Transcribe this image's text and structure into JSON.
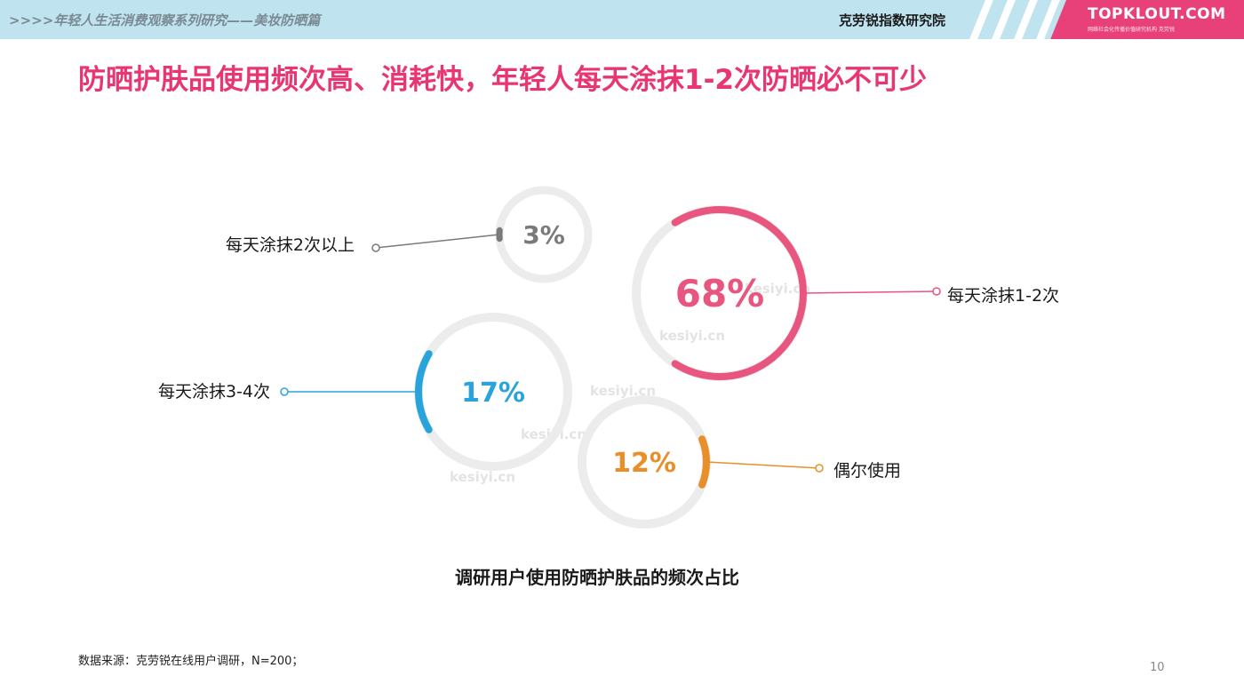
{
  "header": {
    "series_title": ">>>>年轻人生活消费观察系列研究——美妆防晒篇",
    "institute": "克劳锐指数研究院",
    "brand": "TOPKLOUT.COM",
    "brand_sub": "网络社会化传播价值研究机构 克劳锐"
  },
  "page_title": "防晒护肤品使用频次高、消耗快，年轻人每天涂抹1-2次防晒必不可少",
  "chart_data": {
    "type": "pie",
    "title": "调研用户使用防晒护肤品的频次占比",
    "slices": [
      {
        "label": "每天涂抹1-2次",
        "value": 68,
        "display": "68%",
        "color": "#e8557f"
      },
      {
        "label": "每天涂抹3-4次",
        "value": 17,
        "display": "17%",
        "color": "#29a3db"
      },
      {
        "label": "偶尔使用",
        "value": 12,
        "display": "12%",
        "color": "#e88f2a"
      },
      {
        "label": "每天涂抹2次以上",
        "value": 3,
        "display": "3%",
        "color": "#7a7a7a"
      }
    ]
  },
  "watermark": "kesiyi.cn",
  "source": "数据来源：克劳锐在线用户调研，N=200；",
  "page_number": "10"
}
